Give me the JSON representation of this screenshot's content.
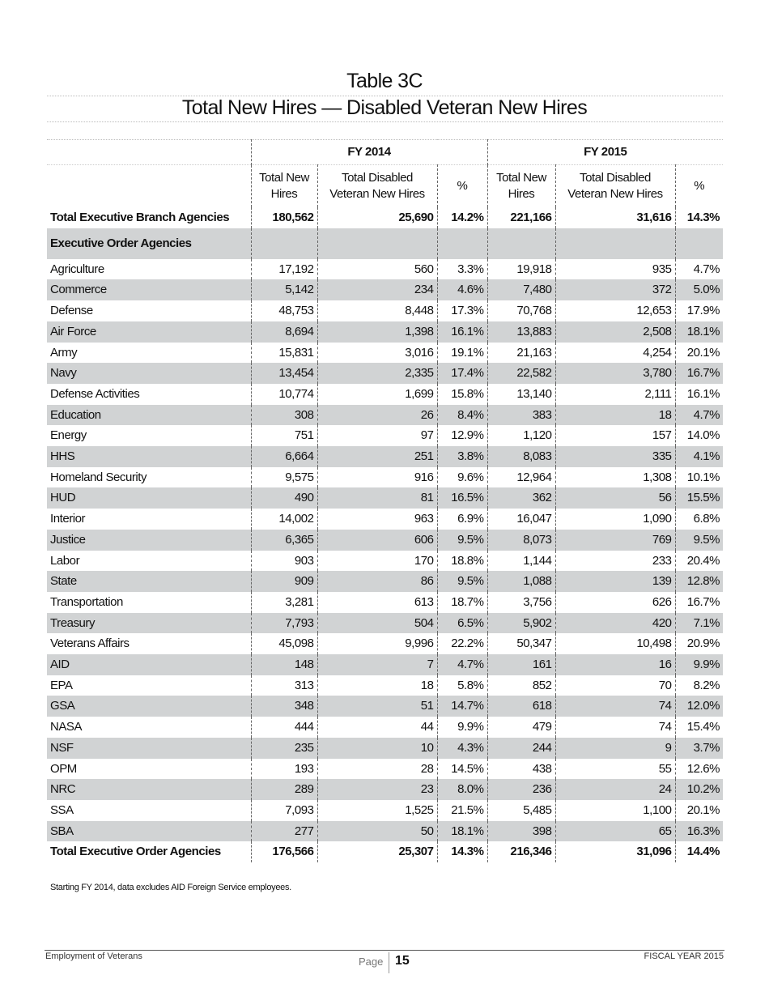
{
  "title": "Table 3C",
  "subtitle": "Total New Hires — Disabled Veteran New Hires",
  "header": {
    "fy1": "FY 2014",
    "fy2": "FY 2015",
    "columns": [
      "Total New\nHires",
      "Total Disabled\nVeteran New Hires",
      "%",
      "Total New\nHires",
      "Total Disabled\nVeteran New Hires",
      "%"
    ]
  },
  "total_branch": {
    "label": "Total Executive Branch Agencies",
    "values": [
      "180,562",
      "25,690",
      "14.2%",
      "221,166",
      "31,616",
      "14.3%"
    ]
  },
  "section_label": "Executive Order Agencies",
  "rows": [
    {
      "label": "Agriculture",
      "values": [
        "17,192",
        "560",
        "3.3%",
        "19,918",
        "935",
        "4.7%"
      ]
    },
    {
      "label": "Commerce",
      "values": [
        "5,142",
        "234",
        "4.6%",
        "7,480",
        "372",
        "5.0%"
      ]
    },
    {
      "label": "Defense",
      "values": [
        "48,753",
        "8,448",
        "17.3%",
        "70,768",
        "12,653",
        "17.9%"
      ]
    },
    {
      "label": "Air Force",
      "sub": true,
      "values": [
        "8,694",
        "1,398",
        "16.1%",
        "13,883",
        "2,508",
        "18.1%"
      ]
    },
    {
      "label": "Army",
      "sub": true,
      "values": [
        "15,831",
        "3,016",
        "19.1%",
        "21,163",
        "4,254",
        "20.1%"
      ]
    },
    {
      "label": "Navy",
      "sub": true,
      "values": [
        "13,454",
        "2,335",
        "17.4%",
        "22,582",
        "3,780",
        "16.7%"
      ]
    },
    {
      "label": "Defense Activities",
      "sub": true,
      "values": [
        "10,774",
        "1,699",
        "15.8%",
        "13,140",
        "2,111",
        "16.1%"
      ]
    },
    {
      "label": "Education",
      "values": [
        "308",
        "26",
        "8.4%",
        "383",
        "18",
        "4.7%"
      ]
    },
    {
      "label": "Energy",
      "values": [
        "751",
        "97",
        "12.9%",
        "1,120",
        "157",
        "14.0%"
      ]
    },
    {
      "label": "HHS",
      "values": [
        "6,664",
        "251",
        "3.8%",
        "8,083",
        "335",
        "4.1%"
      ]
    },
    {
      "label": "Homeland Security",
      "values": [
        "9,575",
        "916",
        "9.6%",
        "12,964",
        "1,308",
        "10.1%"
      ]
    },
    {
      "label": "HUD",
      "values": [
        "490",
        "81",
        "16.5%",
        "362",
        "56",
        "15.5%"
      ]
    },
    {
      "label": "Interior",
      "values": [
        "14,002",
        "963",
        "6.9%",
        "16,047",
        "1,090",
        "6.8%"
      ]
    },
    {
      "label": "Justice",
      "values": [
        "6,365",
        "606",
        "9.5%",
        "8,073",
        "769",
        "9.5%"
      ]
    },
    {
      "label": "Labor",
      "values": [
        "903",
        "170",
        "18.8%",
        "1,144",
        "233",
        "20.4%"
      ]
    },
    {
      "label": "State",
      "values": [
        "909",
        "86",
        "9.5%",
        "1,088",
        "139",
        "12.8%"
      ]
    },
    {
      "label": "Transportation",
      "values": [
        "3,281",
        "613",
        "18.7%",
        "3,756",
        "626",
        "16.7%"
      ]
    },
    {
      "label": "Treasury",
      "values": [
        "7,793",
        "504",
        "6.5%",
        "5,902",
        "420",
        "7.1%"
      ]
    },
    {
      "label": "Veterans Affairs",
      "values": [
        "45,098",
        "9,996",
        "22.2%",
        "50,347",
        "10,498",
        "20.9%"
      ]
    },
    {
      "label": "AID",
      "values": [
        "148",
        "7",
        "4.7%",
        "161",
        "16",
        "9.9%"
      ]
    },
    {
      "label": "EPA",
      "values": [
        "313",
        "18",
        "5.8%",
        "852",
        "70",
        "8.2%"
      ]
    },
    {
      "label": "GSA",
      "values": [
        "348",
        "51",
        "14.7%",
        "618",
        "74",
        "12.0%"
      ]
    },
    {
      "label": "NASA",
      "values": [
        "444",
        "44",
        "9.9%",
        "479",
        "74",
        "15.4%"
      ]
    },
    {
      "label": "NSF",
      "values": [
        "235",
        "10",
        "4.3%",
        "244",
        "9",
        "3.7%"
      ]
    },
    {
      "label": "OPM",
      "values": [
        "193",
        "28",
        "14.5%",
        "438",
        "55",
        "12.6%"
      ]
    },
    {
      "label": "NRC",
      "values": [
        "289",
        "23",
        "8.0%",
        "236",
        "24",
        "10.2%"
      ]
    },
    {
      "label": "SSA",
      "values": [
        "7,093",
        "1,525",
        "21.5%",
        "5,485",
        "1,100",
        "20.1%"
      ]
    },
    {
      "label": "SBA",
      "values": [
        "277",
        "50",
        "18.1%",
        "398",
        "65",
        "16.3%"
      ]
    }
  ],
  "total_order": {
    "label": "Total Executive Order Agencies",
    "values": [
      "176,566",
      "25,307",
      "14.3%",
      "216,346",
      "31,096",
      "14.4%"
    ]
  },
  "note": "Starting FY 2014, data excludes AID Foreign Service employees.",
  "footer": {
    "left": "Employment of Veterans",
    "page_label": "Page",
    "page_number": "15",
    "right": "FISCAL YEAR 2015"
  },
  "colors": {
    "row_shade": "#d1d3d4"
  }
}
